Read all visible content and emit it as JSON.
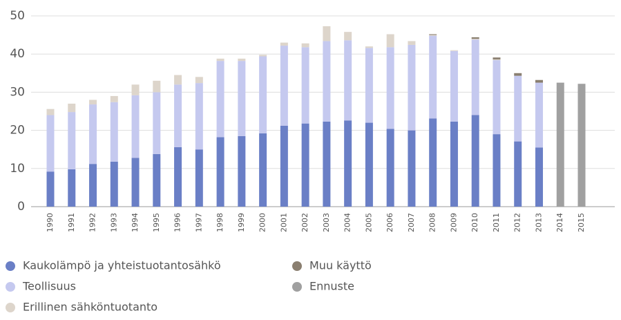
{
  "chart_data": {
    "type": "stacked-bar",
    "categories": [
      "1990",
      "1991",
      "1992",
      "1993",
      "1994",
      "1995",
      "1996",
      "1997",
      "1998",
      "1999",
      "2000",
      "2001",
      "2002",
      "2003",
      "2004",
      "2005",
      "2006",
      "2007",
      "2008",
      "2009",
      "2010",
      "2011",
      "2012",
      "2013",
      "2014",
      "2015"
    ],
    "series": [
      {
        "name": "Kaukolämpö ja yhteistuotantosähkö",
        "color": "#6a7fc6",
        "values": [
          9.2,
          9.8,
          11.2,
          11.8,
          12.8,
          13.8,
          15.6,
          15.0,
          18.2,
          18.5,
          19.2,
          21.2,
          21.8,
          22.3,
          22.6,
          22.0,
          20.4,
          20.0,
          23.1,
          22.3,
          24.0,
          19.0,
          17.1,
          15.5,
          null,
          null
        ]
      },
      {
        "name": "Teollisuus",
        "color": "#c5c9ef",
        "values": [
          14.8,
          15.0,
          15.6,
          15.6,
          16.4,
          16.2,
          16.4,
          17.4,
          20.0,
          19.7,
          20.2,
          21.0,
          20.0,
          21.1,
          21.0,
          19.6,
          21.4,
          22.4,
          21.7,
          18.5,
          19.8,
          19.4,
          17.2,
          17.0,
          null,
          null
        ]
      },
      {
        "name": "Erillinen sähköntuotanto",
        "color": "#ddd5cb",
        "values": [
          1.6,
          2.2,
          1.2,
          1.6,
          2.8,
          3.0,
          2.5,
          1.6,
          0.6,
          0.6,
          0.4,
          0.8,
          1.0,
          3.9,
          2.2,
          0.4,
          3.4,
          1.0,
          0.2,
          0.2,
          0.2,
          0.2,
          null,
          null,
          null,
          null
        ]
      },
      {
        "name": "Muu käyttö",
        "color": "#8a7f70",
        "values": [
          null,
          null,
          null,
          null,
          null,
          null,
          null,
          null,
          null,
          null,
          null,
          null,
          null,
          null,
          null,
          null,
          null,
          null,
          0.2,
          null,
          0.4,
          0.5,
          0.7,
          0.7,
          null,
          null
        ]
      },
      {
        "name": "Ennuste",
        "color": "#a0a0a0",
        "values": [
          null,
          null,
          null,
          null,
          null,
          null,
          null,
          null,
          null,
          null,
          null,
          null,
          null,
          null,
          null,
          null,
          null,
          null,
          null,
          null,
          null,
          null,
          null,
          null,
          32.5,
          32.2
        ]
      }
    ],
    "ylim": [
      0,
      50
    ],
    "yticks": [
      0,
      10,
      20,
      30,
      40,
      50
    ],
    "grid": true
  }
}
